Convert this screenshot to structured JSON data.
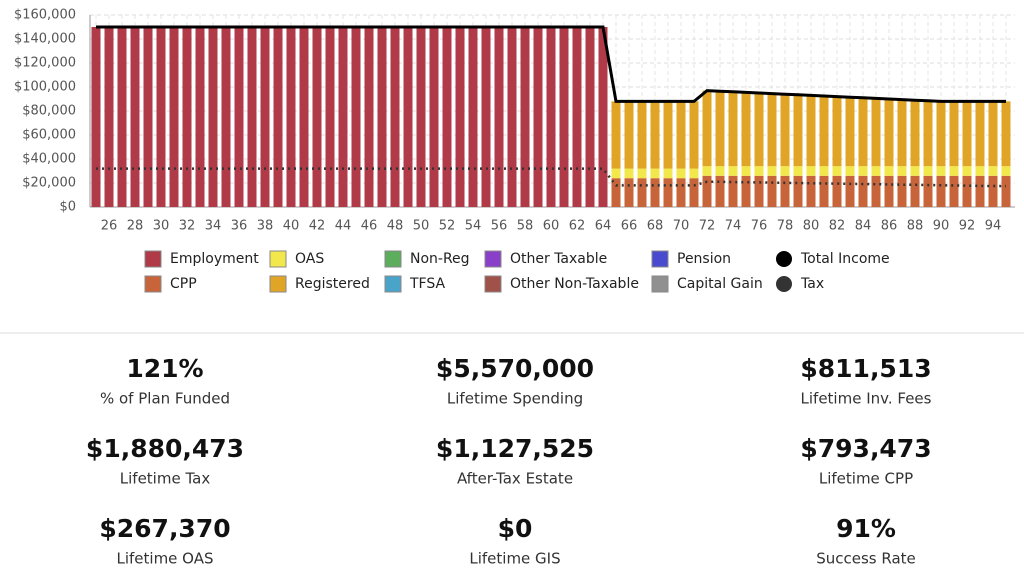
{
  "chart_data": {
    "type": "bar",
    "categories": [
      null,
      26,
      null,
      28,
      null,
      30,
      null,
      32,
      null,
      34,
      null,
      36,
      null,
      38,
      null,
      40,
      null,
      42,
      null,
      44,
      null,
      46,
      null,
      48,
      null,
      50,
      null,
      52,
      null,
      54,
      null,
      56,
      null,
      58,
      null,
      60,
      null,
      62,
      null,
      64,
      null,
      66,
      null,
      68,
      null,
      70,
      null,
      72,
      null,
      74,
      null,
      76,
      null,
      78,
      null,
      80,
      null,
      82,
      null,
      84,
      null,
      86,
      null,
      88,
      null,
      90,
      null,
      92,
      null,
      94,
      null
    ],
    "ylim": [
      0,
      160000
    ],
    "yticks": [
      {
        "value": 0,
        "label": "$0"
      },
      {
        "value": 20000,
        "label": "$20,000"
      },
      {
        "value": 40000,
        "label": "$40,000"
      },
      {
        "value": 60000,
        "label": "$60,000"
      },
      {
        "value": 80000,
        "label": "$80,000"
      },
      {
        "value": 100000,
        "label": "$100,000"
      },
      {
        "value": 120000,
        "label": "$120,000"
      },
      {
        "value": 140000,
        "label": "$140,000"
      },
      {
        "value": 160000,
        "label": "$160,000"
      }
    ],
    "grid": true,
    "series": [
      {
        "name": "Employment",
        "color": "#b03a48",
        "values": [
          150000,
          150000,
          150000,
          150000,
          150000,
          150000,
          150000,
          150000,
          150000,
          150000,
          150000,
          150000,
          150000,
          150000,
          150000,
          150000,
          150000,
          150000,
          150000,
          150000,
          150000,
          150000,
          150000,
          150000,
          150000,
          150000,
          150000,
          150000,
          150000,
          150000,
          150000,
          150000,
          150000,
          150000,
          150000,
          150000,
          150000,
          150000,
          150000,
          150000,
          0,
          0,
          0,
          0,
          0,
          0,
          0,
          0,
          0,
          0,
          0,
          0,
          0,
          0,
          0,
          0,
          0,
          0,
          0,
          0,
          0,
          0,
          0,
          0,
          0,
          0,
          0,
          0,
          0,
          0,
          0
        ]
      },
      {
        "name": "CPP",
        "color": "#c8643a",
        "values": [
          0,
          0,
          0,
          0,
          0,
          0,
          0,
          0,
          0,
          0,
          0,
          0,
          0,
          0,
          0,
          0,
          0,
          0,
          0,
          0,
          0,
          0,
          0,
          0,
          0,
          0,
          0,
          0,
          0,
          0,
          0,
          0,
          0,
          0,
          0,
          0,
          0,
          0,
          0,
          0,
          24000,
          24000,
          24000,
          24000,
          24000,
          24000,
          24000,
          26000,
          26000,
          26000,
          26000,
          26000,
          26000,
          26000,
          26000,
          26000,
          26000,
          26000,
          26000,
          26000,
          26000,
          26000,
          26000,
          26000,
          26000,
          26000,
          26000,
          26000,
          26000,
          26000,
          26000
        ]
      },
      {
        "name": "OAS",
        "color": "#f2e84b",
        "values": [
          0,
          0,
          0,
          0,
          0,
          0,
          0,
          0,
          0,
          0,
          0,
          0,
          0,
          0,
          0,
          0,
          0,
          0,
          0,
          0,
          0,
          0,
          0,
          0,
          0,
          0,
          0,
          0,
          0,
          0,
          0,
          0,
          0,
          0,
          0,
          0,
          0,
          0,
          0,
          0,
          8000,
          8000,
          8000,
          8000,
          8000,
          8000,
          8000,
          8000,
          8000,
          8000,
          8000,
          8000,
          8000,
          8000,
          8000,
          8000,
          8000,
          8000,
          8000,
          8000,
          8000,
          8000,
          8000,
          8000,
          8000,
          8000,
          8000,
          8000,
          8000,
          8000,
          8000
        ]
      },
      {
        "name": "Registered",
        "color": "#e0a526",
        "values": [
          0,
          0,
          0,
          0,
          0,
          0,
          0,
          0,
          0,
          0,
          0,
          0,
          0,
          0,
          0,
          0,
          0,
          0,
          0,
          0,
          0,
          0,
          0,
          0,
          0,
          0,
          0,
          0,
          0,
          0,
          0,
          0,
          0,
          0,
          0,
          0,
          0,
          0,
          0,
          0,
          56000,
          56000,
          56000,
          56000,
          56000,
          56000,
          56000,
          63000,
          62500,
          62000,
          61500,
          61000,
          60500,
          60000,
          59500,
          59000,
          58500,
          58000,
          57500,
          57000,
          56500,
          56000,
          55500,
          55000,
          54500,
          54000,
          54000,
          54000,
          54000,
          54000,
          54000
        ]
      },
      {
        "name": "Non-Reg",
        "color": "#5cad5c",
        "values": [
          0,
          0,
          0,
          0,
          0,
          0,
          0,
          0,
          0,
          0,
          0,
          0,
          0,
          0,
          0,
          0,
          0,
          0,
          0,
          0,
          0,
          0,
          0,
          0,
          0,
          0,
          0,
          0,
          0,
          0,
          0,
          0,
          0,
          0,
          0,
          0,
          0,
          0,
          0,
          0,
          0,
          0,
          0,
          0,
          0,
          0,
          0,
          0,
          0,
          0,
          0,
          0,
          0,
          0,
          0,
          0,
          0,
          0,
          0,
          0,
          0,
          0,
          0,
          0,
          0,
          0,
          0,
          0,
          0,
          0,
          0
        ]
      },
      {
        "name": "TFSA",
        "color": "#4aa3c8",
        "values": [
          0,
          0,
          0,
          0,
          0,
          0,
          0,
          0,
          0,
          0,
          0,
          0,
          0,
          0,
          0,
          0,
          0,
          0,
          0,
          0,
          0,
          0,
          0,
          0,
          0,
          0,
          0,
          0,
          0,
          0,
          0,
          0,
          0,
          0,
          0,
          0,
          0,
          0,
          0,
          0,
          0,
          0,
          0,
          0,
          0,
          0,
          0,
          0,
          0,
          0,
          0,
          0,
          0,
          0,
          0,
          0,
          0,
          0,
          0,
          0,
          0,
          0,
          0,
          0,
          0,
          0,
          0,
          0,
          0,
          0,
          0
        ]
      },
      {
        "name": "Other Taxable",
        "color": "#8a3fc9",
        "values": [
          0,
          0,
          0,
          0,
          0,
          0,
          0,
          0,
          0,
          0,
          0,
          0,
          0,
          0,
          0,
          0,
          0,
          0,
          0,
          0,
          0,
          0,
          0,
          0,
          0,
          0,
          0,
          0,
          0,
          0,
          0,
          0,
          0,
          0,
          0,
          0,
          0,
          0,
          0,
          0,
          0,
          0,
          0,
          0,
          0,
          0,
          0,
          0,
          0,
          0,
          0,
          0,
          0,
          0,
          0,
          0,
          0,
          0,
          0,
          0,
          0,
          0,
          0,
          0,
          0,
          0,
          0,
          0,
          0,
          0,
          0
        ]
      },
      {
        "name": "Other Non-Taxable",
        "color": "#a0524a",
        "values": [
          0,
          0,
          0,
          0,
          0,
          0,
          0,
          0,
          0,
          0,
          0,
          0,
          0,
          0,
          0,
          0,
          0,
          0,
          0,
          0,
          0,
          0,
          0,
          0,
          0,
          0,
          0,
          0,
          0,
          0,
          0,
          0,
          0,
          0,
          0,
          0,
          0,
          0,
          0,
          0,
          0,
          0,
          0,
          0,
          0,
          0,
          0,
          0,
          0,
          0,
          0,
          0,
          0,
          0,
          0,
          0,
          0,
          0,
          0,
          0,
          0,
          0,
          0,
          0,
          0,
          0,
          0,
          0,
          0,
          0,
          0
        ]
      },
      {
        "name": "Pension",
        "color": "#4a4ad0",
        "values": [
          0,
          0,
          0,
          0,
          0,
          0,
          0,
          0,
          0,
          0,
          0,
          0,
          0,
          0,
          0,
          0,
          0,
          0,
          0,
          0,
          0,
          0,
          0,
          0,
          0,
          0,
          0,
          0,
          0,
          0,
          0,
          0,
          0,
          0,
          0,
          0,
          0,
          0,
          0,
          0,
          0,
          0,
          0,
          0,
          0,
          0,
          0,
          0,
          0,
          0,
          0,
          0,
          0,
          0,
          0,
          0,
          0,
          0,
          0,
          0,
          0,
          0,
          0,
          0,
          0,
          0,
          0,
          0,
          0,
          0,
          0
        ]
      },
      {
        "name": "Capital Gain",
        "color": "#909090",
        "values": [
          0,
          0,
          0,
          0,
          0,
          0,
          0,
          0,
          0,
          0,
          0,
          0,
          0,
          0,
          0,
          0,
          0,
          0,
          0,
          0,
          0,
          0,
          0,
          0,
          0,
          0,
          0,
          0,
          0,
          0,
          0,
          0,
          0,
          0,
          0,
          0,
          0,
          0,
          0,
          0,
          0,
          0,
          0,
          0,
          0,
          0,
          0,
          0,
          0,
          0,
          0,
          0,
          0,
          0,
          0,
          0,
          0,
          0,
          0,
          0,
          0,
          0,
          0,
          0,
          0,
          0,
          0,
          0,
          0,
          0,
          0
        ]
      },
      {
        "name": "Total Income",
        "color": "#000000",
        "type": "line",
        "values": [
          150000,
          150000,
          150000,
          150000,
          150000,
          150000,
          150000,
          150000,
          150000,
          150000,
          150000,
          150000,
          150000,
          150000,
          150000,
          150000,
          150000,
          150000,
          150000,
          150000,
          150000,
          150000,
          150000,
          150000,
          150000,
          150000,
          150000,
          150000,
          150000,
          150000,
          150000,
          150000,
          150000,
          150000,
          150000,
          150000,
          150000,
          150000,
          150000,
          150000,
          88000,
          88000,
          88000,
          88000,
          88000,
          88000,
          88000,
          97000,
          96500,
          96000,
          95500,
          95000,
          94500,
          94000,
          93500,
          93000,
          92500,
          92000,
          91500,
          91000,
          90500,
          90000,
          89500,
          89000,
          88500,
          88000,
          88000,
          88000,
          88000,
          88000,
          88000
        ]
      },
      {
        "name": "Tax",
        "color": "#333333",
        "type": "line",
        "dotted": true,
        "values": [
          32000,
          32000,
          32000,
          32000,
          32000,
          32000,
          32000,
          32000,
          32000,
          32000,
          32000,
          32000,
          32000,
          32000,
          32000,
          32000,
          32000,
          32000,
          32000,
          32000,
          32000,
          32000,
          32000,
          32000,
          32000,
          32000,
          32000,
          32000,
          32000,
          32000,
          32000,
          32000,
          32000,
          32000,
          32000,
          32000,
          32000,
          32000,
          32000,
          32000,
          18000,
          18000,
          18000,
          18000,
          18000,
          18000,
          18000,
          21000,
          21000,
          20800,
          20600,
          20500,
          20300,
          20100,
          20000,
          19800,
          19600,
          19500,
          19300,
          19100,
          19000,
          18800,
          18600,
          18500,
          18300,
          18100,
          18000,
          17800,
          17600,
          17500,
          17400
        ]
      }
    ]
  },
  "stats": [
    {
      "value": "121%",
      "label": "% of Plan Funded"
    },
    {
      "value": "$5,570,000",
      "label": "Lifetime Spending"
    },
    {
      "value": "$811,513",
      "label": "Lifetime Inv. Fees"
    },
    {
      "value": "$1,880,473",
      "label": "Lifetime Tax"
    },
    {
      "value": "$1,127,525",
      "label": "After-Tax Estate"
    },
    {
      "value": "$793,473",
      "label": "Lifetime CPP"
    },
    {
      "value": "$267,370",
      "label": "Lifetime OAS"
    },
    {
      "value": "$0",
      "label": "Lifetime GIS"
    },
    {
      "value": "91%",
      "label": "Success Rate"
    }
  ]
}
